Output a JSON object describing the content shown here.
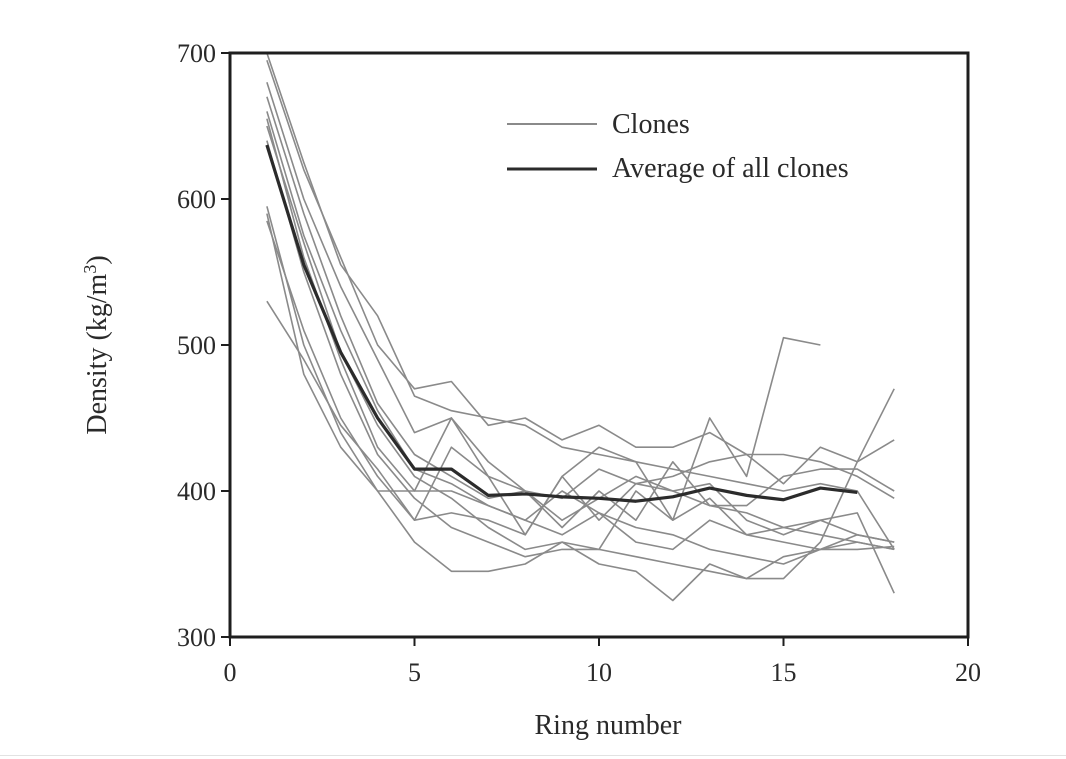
{
  "chart_data": {
    "type": "line",
    "xlabel": "Ring number",
    "ylabel_main": "Density (kg/m",
    "ylabel_sup": "3",
    "ylabel_close": ")",
    "xlim": [
      0,
      20
    ],
    "ylim": [
      300,
      700
    ],
    "xticks": [
      0,
      5,
      10,
      15,
      20
    ],
    "yticks": [
      300,
      400,
      500,
      600,
      700
    ],
    "grid": false,
    "legend_position": "top-right",
    "legend": [
      {
        "label": "Clones",
        "role": "clones"
      },
      {
        "label": "Average of all clones",
        "role": "average"
      }
    ],
    "colors": {
      "clones": "#8a8a8a",
      "average": "#2b2b2b",
      "frame": "#1e1e1e"
    },
    "series": [
      {
        "role": "clones",
        "x": [
          1,
          2,
          3,
          4,
          5,
          6,
          7,
          8,
          9,
          10,
          11,
          12,
          13,
          14,
          15,
          16,
          17,
          18
        ],
        "y": [
          700,
          625,
          555,
          520,
          465,
          455,
          450,
          445,
          430,
          425,
          420,
          415,
          410,
          405,
          400,
          405,
          400,
          360
        ]
      },
      {
        "role": "clones",
        "x": [
          1,
          2,
          3,
          4,
          5,
          6,
          7,
          8,
          9,
          10,
          11,
          12,
          13,
          14,
          15,
          16,
          17,
          18
        ],
        "y": [
          695,
          620,
          560,
          500,
          470,
          475,
          445,
          450,
          435,
          445,
          430,
          430,
          440,
          425,
          425,
          420,
          410,
          395
        ]
      },
      {
        "role": "clones",
        "x": [
          1,
          2,
          3,
          4,
          5,
          6,
          7,
          8,
          9,
          10,
          11,
          12,
          13,
          14,
          15,
          16,
          17,
          18
        ],
        "y": [
          680,
          600,
          540,
          490,
          440,
          450,
          420,
          400,
          375,
          400,
          380,
          420,
          390,
          385,
          375,
          370,
          365,
          360
        ]
      },
      {
        "role": "clones",
        "x": [
          1,
          2,
          3,
          4,
          5,
          6,
          7,
          8,
          9,
          10,
          11,
          12,
          13,
          14,
          15,
          16,
          17,
          18
        ],
        "y": [
          670,
          590,
          520,
          460,
          425,
          410,
          395,
          400,
          380,
          395,
          410,
          400,
          405,
          380,
          370,
          380,
          385,
          330
        ]
      },
      {
        "role": "clones",
        "x": [
          1,
          2,
          3,
          4,
          5,
          6,
          7,
          8,
          9,
          10,
          11,
          12,
          13,
          14,
          15,
          16,
          17,
          18
        ],
        "y": [
          660,
          575,
          510,
          455,
          415,
          405,
          390,
          380,
          370,
          385,
          365,
          360,
          380,
          370,
          365,
          360,
          360,
          362
        ]
      },
      {
        "role": "clones",
        "x": [
          1,
          2,
          3,
          4,
          5,
          6,
          7,
          8,
          9,
          10,
          11,
          12,
          13,
          14,
          15,
          16,
          17,
          18
        ],
        "y": [
          655,
          560,
          490,
          430,
          400,
          400,
          390,
          380,
          400,
          385,
          375,
          370,
          360,
          355,
          350,
          360,
          365,
          360
        ]
      },
      {
        "role": "clones",
        "x": [
          1,
          2,
          3,
          4,
          5,
          6,
          7,
          8,
          9,
          10,
          11,
          12,
          13,
          14,
          15,
          16,
          17,
          18
        ],
        "y": [
          640,
          550,
          480,
          425,
          395,
          375,
          365,
          355,
          360,
          360,
          355,
          350,
          345,
          340,
          355,
          360,
          370,
          365
        ]
      },
      {
        "role": "clones",
        "x": [
          1,
          2,
          3,
          4,
          5,
          6,
          7,
          8,
          9,
          10,
          11,
          12,
          13,
          14,
          15,
          16,
          17,
          18
        ],
        "y": [
          595,
          500,
          440,
          400,
          365,
          345,
          345,
          350,
          365,
          350,
          345,
          325,
          350,
          340,
          340,
          365,
          420,
          435
        ]
      },
      {
        "role": "clones",
        "x": [
          1,
          2,
          3,
          4,
          5,
          6,
          7,
          8,
          9,
          10,
          11,
          12,
          13,
          14,
          15,
          16,
          17,
          18
        ],
        "y": [
          590,
          480,
          430,
          400,
          400,
          450,
          410,
          400,
          395,
          415,
          405,
          410,
          420,
          425,
          405,
          430,
          420,
          470
        ]
      },
      {
        "role": "clones",
        "x": [
          1,
          2,
          3,
          4,
          5,
          6,
          7,
          8,
          9,
          10,
          11,
          12,
          13,
          14,
          15,
          16
        ],
        "y": [
          585,
          510,
          450,
          410,
          380,
          430,
          410,
          370,
          410,
          430,
          420,
          380,
          450,
          410,
          505,
          500
        ]
      },
      {
        "role": "clones",
        "x": [
          1,
          2,
          3,
          4,
          5,
          6,
          7,
          8,
          9,
          10,
          11,
          12,
          13,
          14,
          15,
          16,
          17,
          18
        ],
        "y": [
          530,
          490,
          445,
          415,
          380,
          385,
          380,
          370,
          410,
          380,
          405,
          400,
          390,
          390,
          410,
          415,
          415,
          400
        ]
      },
      {
        "role": "clones",
        "x": [
          1,
          2,
          3,
          4,
          5,
          6,
          7,
          8,
          9,
          10,
          11,
          12,
          13,
          14,
          15,
          16,
          17,
          18
        ],
        "y": [
          650,
          570,
          495,
          445,
          410,
          395,
          375,
          360,
          365,
          360,
          400,
          380,
          395,
          370,
          375,
          380,
          370,
          365
        ]
      },
      {
        "role": "average",
        "x": [
          1,
          2,
          3,
          4,
          5,
          6,
          7,
          8,
          9,
          10,
          11,
          12,
          13,
          14,
          15,
          16,
          17
        ],
        "y": [
          637,
          555,
          495,
          450,
          415,
          415,
          397,
          398,
          396,
          395,
          393,
          396,
          402,
          397,
          394,
          402,
          399
        ]
      }
    ]
  }
}
